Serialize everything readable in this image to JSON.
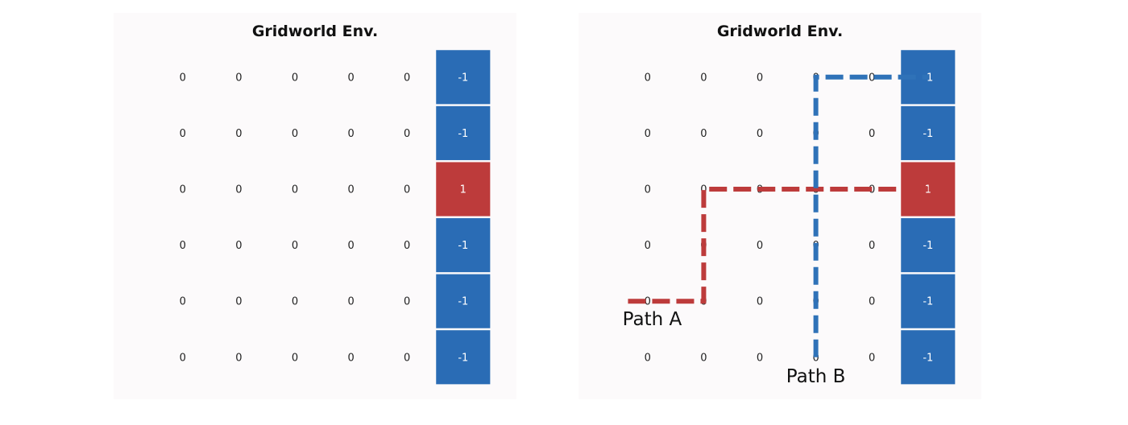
{
  "colors": {
    "negative": "#2a6cb5",
    "positive": "#bd3b3b",
    "path_a": "#bd3b3b",
    "path_b": "#2f72b8",
    "panel_bg": "#fcfafb"
  },
  "panels": [
    {
      "title": "Gridworld Env.",
      "grid": [
        [
          "0",
          "0",
          "0",
          "0",
          "0",
          "-1"
        ],
        [
          "0",
          "0",
          "0",
          "0",
          "0",
          "-1"
        ],
        [
          "0",
          "0",
          "0",
          "0",
          "0",
          "1"
        ],
        [
          "0",
          "0",
          "0",
          "0",
          "0",
          "-1"
        ],
        [
          "0",
          "0",
          "0",
          "0",
          "0",
          "-1"
        ],
        [
          "0",
          "0",
          "0",
          "0",
          "0",
          "-1"
        ]
      ],
      "paths": []
    },
    {
      "title": "Gridworld Env.",
      "grid": [
        [
          "0",
          "0",
          "0",
          "0",
          "0",
          "-1"
        ],
        [
          "0",
          "0",
          "0",
          "0",
          "0",
          "-1"
        ],
        [
          "0",
          "0",
          "0",
          "0",
          "0",
          "1"
        ],
        [
          "0",
          "0",
          "0",
          "0",
          "0",
          "-1"
        ],
        [
          "0",
          "0",
          "0",
          "0",
          "0",
          "-1"
        ],
        [
          "0",
          "0",
          "0",
          "0",
          "0",
          "-1"
        ]
      ],
      "paths": [
        {
          "label": "Path A",
          "color_key": "path_a",
          "cells": [
            [
              4,
              -0.35
            ],
            [
              4,
              1
            ],
            [
              2,
              1
            ],
            [
              2,
              5
            ]
          ]
        },
        {
          "label": "Path B",
          "color_key": "path_b",
          "cells": [
            [
              5,
              3
            ],
            [
              0,
              3
            ],
            [
              0,
              5
            ]
          ]
        }
      ]
    }
  ]
}
